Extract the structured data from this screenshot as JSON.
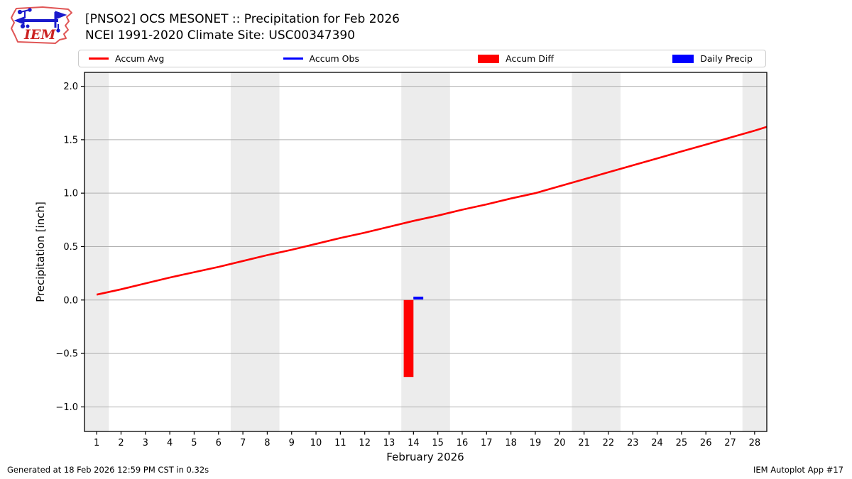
{
  "header": {
    "title": "[PNSO2] OCS MESONET :: Precipitation for Feb 2026",
    "subtitle": "NCEI 1991-2020 Climate Site: USC00347390",
    "logo_text": "IEM"
  },
  "legend": {
    "items": [
      {
        "label": "Accum Avg",
        "shape": "line",
        "color": "#ff0000"
      },
      {
        "label": "Accum Obs",
        "shape": "line",
        "color": "#0000ff"
      },
      {
        "label": "Accum Diff",
        "shape": "patch",
        "color": "#ff0000"
      },
      {
        "label": "Daily Precip",
        "shape": "patch",
        "color": "#0000ff"
      }
    ]
  },
  "colors": {
    "accum_avg": "#ff0000",
    "accum_obs": "#0000ff",
    "accum_diff": "#ff0000",
    "daily_precip": "#0000ff",
    "weekend_band": "#ececec",
    "gridline": "#b0b0b0",
    "axis": "#000000",
    "logo_red": "#cc2222",
    "logo_blue": "#1a1acc"
  },
  "chart_data": {
    "type": "line",
    "title": "[PNSO2] OCS MESONET :: Precipitation for Feb 2026",
    "subtitle": "NCEI 1991-2020 Climate Site: USC00347390",
    "xlabel": "February 2026",
    "ylabel": "Precipitation [inch]",
    "xlim": [
      0.5,
      28.5
    ],
    "ylim": [
      -1.23,
      2.13
    ],
    "grid": "horizontal-only",
    "legend_position": "top",
    "x_ticks": [
      1,
      2,
      3,
      4,
      5,
      6,
      7,
      8,
      9,
      10,
      11,
      12,
      13,
      14,
      15,
      16,
      17,
      18,
      19,
      20,
      21,
      22,
      23,
      24,
      25,
      26,
      27,
      28
    ],
    "y_ticks": [
      {
        "value": -1.0,
        "label": "−1.0"
      },
      {
        "value": -0.5,
        "label": "−0.5"
      },
      {
        "value": 0.0,
        "label": "0.0"
      },
      {
        "value": 0.5,
        "label": "0.5"
      },
      {
        "value": 1.0,
        "label": "1.0"
      },
      {
        "value": 1.5,
        "label": "1.5"
      },
      {
        "value": 2.0,
        "label": "2.0"
      }
    ],
    "weekend_bands": [
      [
        0.5,
        1.5
      ],
      [
        6.5,
        8.5
      ],
      [
        13.5,
        15.5
      ],
      [
        20.5,
        22.5
      ],
      [
        27.5,
        28.5
      ]
    ],
    "series": [
      {
        "id": "accum-avg",
        "name": "Accum Avg",
        "type": "line",
        "color": "#ff0000",
        "width": 2.6,
        "x": [
          1,
          2,
          3,
          4,
          5,
          6,
          7,
          8,
          9,
          10,
          11,
          12,
          13,
          14,
          15,
          16,
          17,
          18,
          19,
          20,
          21,
          22,
          23,
          24,
          25,
          26,
          27,
          28,
          28.5
        ],
        "y": [
          0.05,
          0.1,
          0.155,
          0.21,
          0.26,
          0.31,
          0.365,
          0.42,
          0.47,
          0.525,
          0.58,
          0.63,
          0.685,
          0.74,
          0.79,
          0.845,
          0.895,
          0.95,
          1.0,
          1.065,
          1.13,
          1.195,
          1.26,
          1.325,
          1.39,
          1.455,
          1.52,
          1.585,
          1.62
        ]
      },
      {
        "id": "accum-obs",
        "name": "Accum Obs",
        "type": "line",
        "color": "#0000ff",
        "width": 3.2,
        "x": [
          14,
          14.4
        ],
        "y": [
          0.02,
          0.02
        ]
      },
      {
        "id": "accum-diff",
        "name": "Accum Diff",
        "type": "bar",
        "color": "#ff0000",
        "bars": [
          {
            "x0": 13.6,
            "x1": 14.0,
            "y0": 0.0,
            "y1": -0.72
          }
        ]
      },
      {
        "id": "daily-precip",
        "name": "Daily Precip",
        "type": "bar",
        "color": "#0000ff",
        "bars": [
          {
            "x0": 14.0,
            "x1": 14.4,
            "y0": 0.005,
            "y1": 0.03
          }
        ]
      }
    ]
  },
  "footer": {
    "generated": "Generated at 18 Feb 2026 12:59 PM CST in 0.32s",
    "credit": "IEM Autoplot App #17"
  }
}
